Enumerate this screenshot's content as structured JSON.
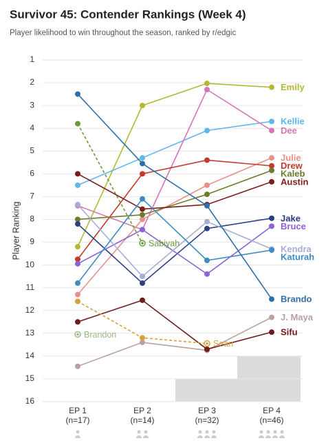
{
  "chart_data": {
    "type": "line",
    "title": "Survivor 45: Contender Rankings (Week 4)",
    "subtitle": "Player likelihood to win throughout the season, ranked by r/edgic",
    "y_label": "Player Ranking",
    "categories": [
      "EP 1",
      "EP 2",
      "EP 3",
      "EP 4"
    ],
    "sample_sizes": [
      "(n=17)",
      "(n=14)",
      "(n=32)",
      "(n=46)"
    ],
    "ylim": [
      1,
      16
    ],
    "yticks": [
      1,
      2,
      3,
      4,
      5,
      6,
      7,
      8,
      9,
      10,
      11,
      12,
      13,
      14,
      15,
      16
    ],
    "y_inverted": true,
    "grid": true,
    "series": [
      {
        "name": "Emily",
        "color": "#b5b832",
        "values": [
          9.2,
          3.0,
          2.03,
          2.2
        ]
      },
      {
        "name": "Kellie",
        "color": "#5fb8e8",
        "values": [
          6.5,
          5.3,
          4.1,
          3.7
        ]
      },
      {
        "name": "Dee",
        "color": "#d675b5",
        "values": [
          7.4,
          8.45,
          2.3,
          4.1
        ]
      },
      {
        "name": "Julie",
        "color": "#e8908a",
        "values": [
          11.3,
          8.0,
          6.5,
          5.3
        ]
      },
      {
        "name": "Drew",
        "color": "#c43a2e",
        "values": [
          9.75,
          6.0,
          5.4,
          5.65
        ]
      },
      {
        "name": "Kaleb",
        "color": "#6e7b2c",
        "values": [
          8.0,
          7.8,
          6.9,
          5.85
        ]
      },
      {
        "name": "Austin",
        "color": "#7b1f1c",
        "values": [
          6.0,
          7.55,
          7.35,
          6.35
        ]
      },
      {
        "name": "Jake",
        "color": "#2b3f86",
        "values": [
          8.2,
          10.8,
          8.4,
          7.95
        ]
      },
      {
        "name": "Bruce",
        "color": "#8c63d8",
        "values": [
          9.95,
          8.45,
          10.4,
          8.3
        ]
      },
      {
        "name": "Kendra",
        "color": "#a7add9",
        "values": [
          7.35,
          10.5,
          8.1,
          9.3
        ]
      },
      {
        "name": "Katurah",
        "color": "#3d8bc0",
        "values": [
          10.8,
          7.1,
          9.8,
          9.35
        ]
      },
      {
        "name": "Brando",
        "color": "#2f6fa8",
        "values": [
          2.5,
          5.55,
          7.4,
          11.5
        ]
      },
      {
        "name": "J. Maya",
        "color": "#bba0a0",
        "values": [
          14.45,
          13.4,
          13.75,
          12.3
        ]
      },
      {
        "name": "Sifu",
        "color": "#6e1c1c",
        "values": [
          12.5,
          11.55,
          13.7,
          12.95
        ]
      },
      {
        "name": "Sabiyah",
        "color": "#6a9a3a",
        "eliminated": true,
        "values": [
          3.8,
          9.05,
          null,
          null
        ]
      },
      {
        "name": "Brandon",
        "color": "#9ab88a",
        "eliminated": true,
        "values": [
          13.05,
          null,
          null,
          null
        ]
      },
      {
        "name": "Sean",
        "color": "#d4a13a",
        "eliminated": true,
        "values": [
          11.6,
          13.2,
          13.45,
          null
        ]
      }
    ]
  }
}
